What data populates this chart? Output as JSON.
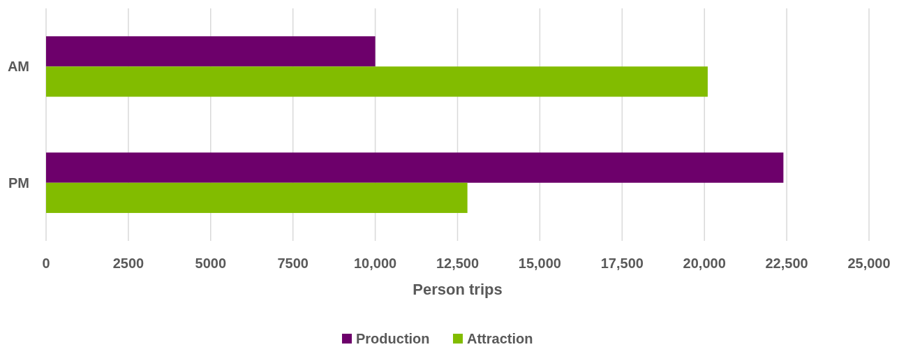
{
  "chart_data": {
    "type": "bar",
    "orientation": "horizontal",
    "categories": [
      "AM",
      "PM"
    ],
    "series": [
      {
        "name": "Production",
        "color": "#6d006b",
        "values": [
          10000,
          22400
        ]
      },
      {
        "name": "Attraction",
        "color": "#82bc00",
        "values": [
          20100,
          12800
        ]
      }
    ],
    "xlabel": "Person trips",
    "xlim": [
      0,
      25000
    ],
    "xticks": [
      0,
      2500,
      5000,
      7500,
      {
        "value": 10000,
        "label": "10,000"
      },
      {
        "value": 12500,
        "label": "12,500"
      },
      {
        "value": 15000,
        "label": "15,000"
      },
      {
        "value": 17500,
        "label": "17,500"
      },
      {
        "value": 20000,
        "label": "20,000"
      },
      {
        "value": 22500,
        "label": "22,500"
      },
      {
        "value": 25000,
        "label": "25,000"
      }
    ],
    "grid": "x",
    "legend": "bottom"
  }
}
